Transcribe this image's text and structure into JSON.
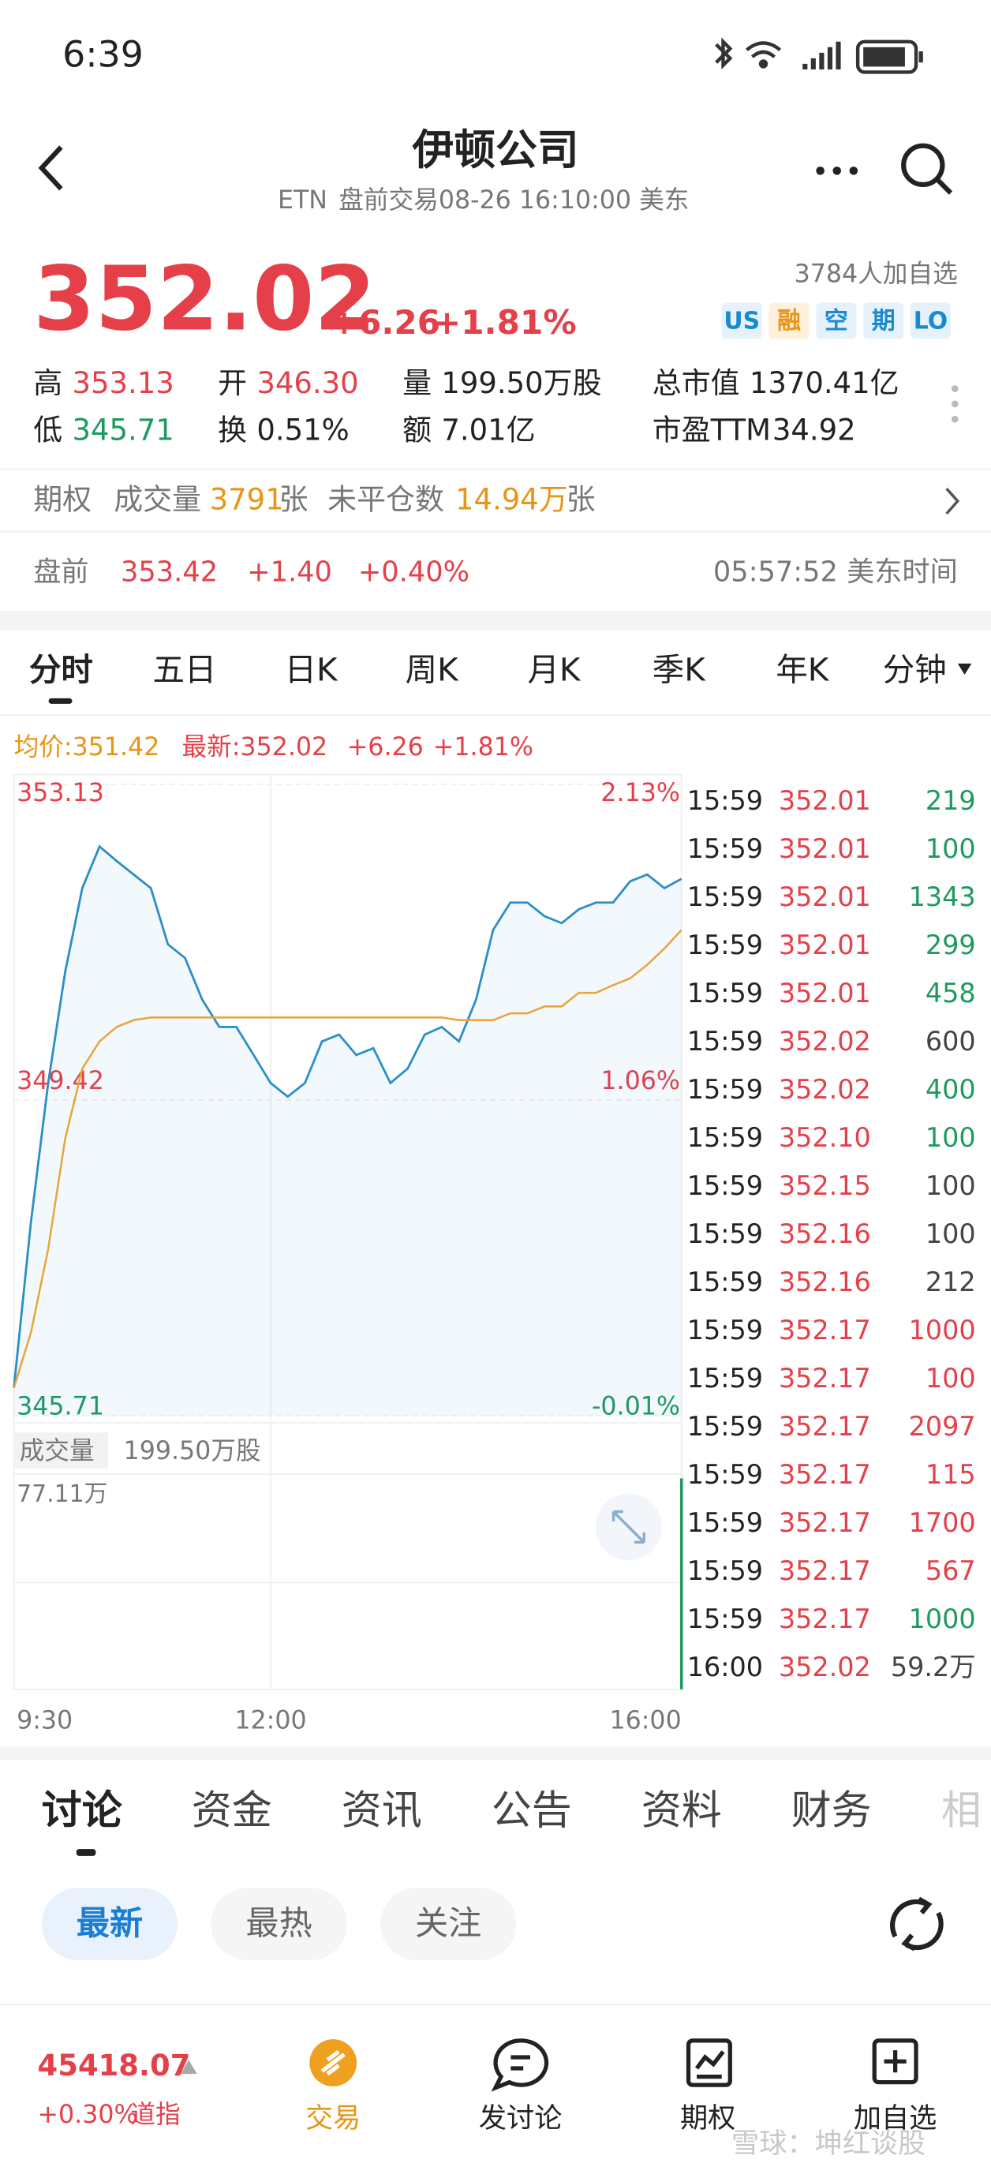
{
  "status_bar": {
    "time": "6:39"
  },
  "header": {
    "title": "伊顿公司",
    "ticker": "ETN",
    "session": "盘前交易08-26 16:10:00 美东"
  },
  "quote": {
    "price": "352.02",
    "change": "+6.26",
    "change_pct": "+1.81%",
    "watchers": "3784人加自选",
    "tags": [
      "US",
      "融",
      "空",
      "期",
      "LO"
    ]
  },
  "stats": [
    {
      "label": "高",
      "value": "353.13",
      "color": "#e5404a"
    },
    {
      "label": "开",
      "value": "346.30",
      "color": "#e5404a"
    },
    {
      "label": "量",
      "value": "199.50万股",
      "color": "#222222"
    },
    {
      "label": "总市值",
      "value": "1370.41亿",
      "color": "#222222"
    },
    {
      "label": "低",
      "value": "345.71",
      "color": "#1f9a5e"
    },
    {
      "label": "换",
      "value": "0.51%",
      "color": "#222222"
    },
    {
      "label": "额",
      "value": "7.01亿",
      "color": "#222222"
    },
    {
      "label": "市盈TTM",
      "value": "34.92",
      "color": "#222222"
    }
  ],
  "options": {
    "label": "期权",
    "volume_label": "成交量",
    "volume": "3791",
    "volume_unit": "张",
    "oi_label": "未平仓数",
    "oi": "14.94万",
    "oi_unit": "张"
  },
  "premarket": {
    "label": "盘前",
    "price": "353.42",
    "change": "+1.40",
    "change_pct": "+0.40%",
    "time": "05:57:52 美东时间"
  },
  "period_tabs": [
    "分时",
    "五日",
    "日K",
    "周K",
    "月K",
    "季K",
    "年K",
    "分钟"
  ],
  "intraday": {
    "avg_label": "均价:351.42",
    "last_label": "最新:352.02",
    "change": "+6.26",
    "change_pct": "+1.81%",
    "ylim": [
      345.71,
      353.13
    ],
    "yticks": [
      345.71,
      349.42,
      353.13
    ],
    "pct_ticks": [
      "-0.01%",
      "1.06%",
      "2.13%"
    ],
    "xticks": [
      "9:30",
      "12:00",
      "16:00"
    ],
    "price": [
      346.04,
      347.99,
      349.62,
      350.93,
      351.91,
      352.4,
      352.23,
      352.07,
      351.91,
      351.25,
      351.09,
      350.6,
      350.28,
      350.28,
      349.95,
      349.62,
      349.46,
      349.62,
      350.11,
      350.19,
      349.95,
      350.03,
      349.62,
      349.79,
      350.19,
      350.28,
      350.11,
      350.6,
      351.42,
      351.74,
      351.74,
      351.58,
      351.5,
      351.66,
      351.74,
      351.74,
      351.99,
      352.07,
      351.91,
      352.02
    ],
    "avg": [
      346.04,
      346.69,
      347.67,
      348.97,
      349.79,
      350.11,
      350.28,
      350.36,
      350.39,
      350.39,
      350.39,
      350.39,
      350.39,
      350.39,
      350.39,
      350.39,
      350.39,
      350.39,
      350.39,
      350.39,
      350.39,
      350.39,
      350.39,
      350.39,
      350.39,
      350.39,
      350.36,
      350.36,
      350.36,
      350.44,
      350.44,
      350.52,
      350.52,
      350.68,
      350.68,
      350.77,
      350.85,
      351.01,
      351.2,
      351.42
    ],
    "price_color": "#2b8fc7",
    "avg_color": "#e8a33a",
    "volume_label": "成交量",
    "volume_total": "199.50万股",
    "volume_max": "77.11万"
  },
  "trades": [
    {
      "time": "15:59",
      "price": "352.01",
      "volume": "219",
      "color": "#1f9a5e"
    },
    {
      "time": "15:59",
      "price": "352.01",
      "volume": "100",
      "color": "#1f9a5e"
    },
    {
      "time": "15:59",
      "price": "352.01",
      "volume": "1343",
      "color": "#1f9a5e"
    },
    {
      "time": "15:59",
      "price": "352.01",
      "volume": "299",
      "color": "#1f9a5e"
    },
    {
      "time": "15:59",
      "price": "352.01",
      "volume": "458",
      "color": "#1f9a5e"
    },
    {
      "time": "15:59",
      "price": "352.02",
      "volume": "600",
      "color": "#444444"
    },
    {
      "time": "15:59",
      "price": "352.02",
      "volume": "400",
      "color": "#1f9a5e"
    },
    {
      "time": "15:59",
      "price": "352.10",
      "volume": "100",
      "color": "#1f9a5e"
    },
    {
      "time": "15:59",
      "price": "352.15",
      "volume": "100",
      "color": "#444444"
    },
    {
      "time": "15:59",
      "price": "352.16",
      "volume": "100",
      "color": "#444444"
    },
    {
      "time": "15:59",
      "price": "352.16",
      "volume": "212",
      "color": "#444444"
    },
    {
      "time": "15:59",
      "price": "352.17",
      "volume": "1000",
      "color": "#e5404a"
    },
    {
      "time": "15:59",
      "price": "352.17",
      "volume": "100",
      "color": "#e5404a"
    },
    {
      "time": "15:59",
      "price": "352.17",
      "volume": "2097",
      "color": "#e5404a"
    },
    {
      "time": "15:59",
      "price": "352.17",
      "volume": "115",
      "color": "#e5404a"
    },
    {
      "time": "15:59",
      "price": "352.17",
      "volume": "1700",
      "color": "#e5404a"
    },
    {
      "time": "15:59",
      "price": "352.17",
      "volume": "567",
      "color": "#e5404a"
    },
    {
      "time": "15:59",
      "price": "352.17",
      "volume": "1000",
      "color": "#1f9a5e"
    },
    {
      "time": "16:00",
      "price": "352.02",
      "volume": "59.2万",
      "color": "#444444"
    }
  ],
  "content_tabs": [
    "讨论",
    "资金",
    "资讯",
    "公告",
    "资料",
    "财务",
    "相"
  ],
  "filters": [
    "最新",
    "最热",
    "关注"
  ],
  "bottom_bar": {
    "index_value": "45418.07",
    "index_change": "+0.30%",
    "index_name": "道指",
    "nav": [
      "交易",
      "发讨论",
      "期权",
      "加自选"
    ]
  },
  "watermark": "雪球：坤红谈股"
}
